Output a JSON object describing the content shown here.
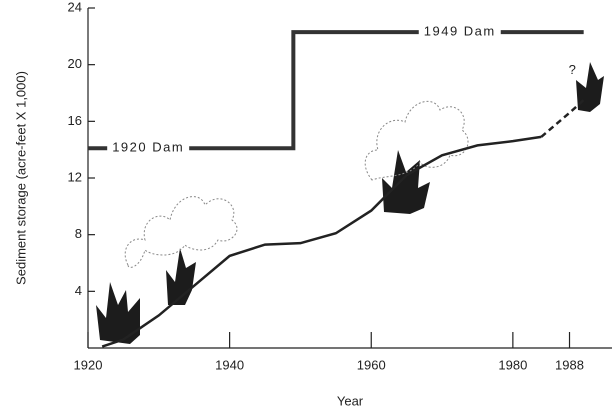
{
  "chart_data": {
    "type": "line",
    "x_label": "Year",
    "y_label": "Sediment storage (acre-feet X 1,000)",
    "xlim": [
      1920,
      1994
    ],
    "xticks": [
      1920,
      1940,
      1960,
      1980,
      1988
    ],
    "ylim": [
      0,
      24
    ],
    "yticks": [
      4,
      8,
      12,
      16,
      20,
      24
    ],
    "series": [
      {
        "style": "step",
        "color": "#333333",
        "x": [
          1920,
          1949,
          1949,
          1990
        ],
        "values": [
          14.1,
          14.1,
          22.3,
          22.3
        ]
      },
      {
        "style": "solid",
        "color": "#222222",
        "x": [
          1922,
          1925,
          1930,
          1935,
          1940,
          1945,
          1950,
          1955,
          1960,
          1965,
          1970,
          1975,
          1980,
          1984
        ],
        "values": [
          0.1,
          0.6,
          2.3,
          4.4,
          6.5,
          7.3,
          7.4,
          8.1,
          9.7,
          12.2,
          13.6,
          14.3,
          14.6,
          14.9
        ]
      },
      {
        "style": "dash",
        "color": "#222222",
        "x": [
          1984,
          1988,
          1990
        ],
        "values": [
          14.9,
          16.6,
          17.5
        ]
      }
    ],
    "annotations": [
      {
        "text": "1920 Dam",
        "x": 1928.5,
        "y": 14.1
      },
      {
        "text": "1949 Dam",
        "x": 1972.5,
        "y": 22.3
      },
      {
        "text": "?",
        "x": 1988.5,
        "y": 19.6
      }
    ]
  }
}
